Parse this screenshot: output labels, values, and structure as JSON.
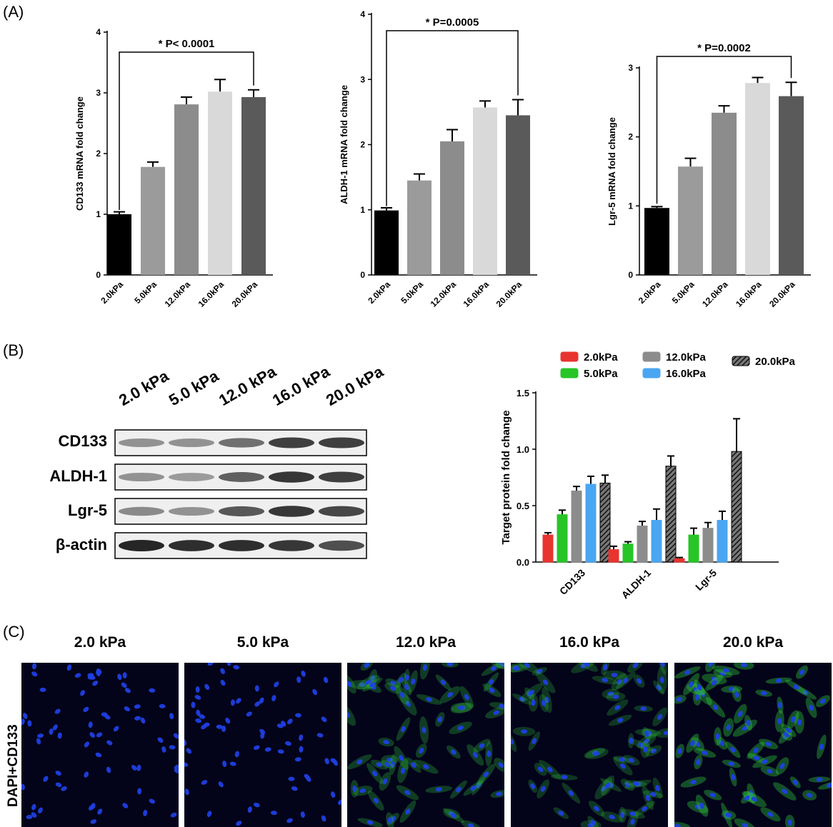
{
  "panels": {
    "a": "(A)",
    "b": "(B)",
    "c": "(C)"
  },
  "chart_data": [
    {
      "type": "bar",
      "ylabel": "CD133  mRNA fold change",
      "categories": [
        "2.0kPa",
        "5.0kPa",
        "12.0kPa",
        "16.0kPa",
        "20.0kPa"
      ],
      "values": [
        1.0,
        1.78,
        2.81,
        3.02,
        2.93
      ],
      "errors": [
        0.04,
        0.08,
        0.12,
        0.2,
        0.12
      ],
      "colors": [
        "#000000",
        "#9b9b9b",
        "#8c8c8c",
        "#d9d9d9",
        "#5a5a5a"
      ],
      "ylim": [
        0,
        4
      ],
      "yticks": [
        0,
        1,
        2,
        3,
        4
      ],
      "annotation": "*  P< 0.0001"
    },
    {
      "type": "bar",
      "ylabel": "ALDH-1  mRNA fold change",
      "categories": [
        "2.0kPa",
        "5.0kPa",
        "12.0kPa",
        "16.0kPa",
        "20.0kPa"
      ],
      "values": [
        0.99,
        1.45,
        2.05,
        2.57,
        2.45
      ],
      "errors": [
        0.04,
        0.1,
        0.18,
        0.1,
        0.24
      ],
      "colors": [
        "#000000",
        "#9b9b9b",
        "#8c8c8c",
        "#d9d9d9",
        "#5a5a5a"
      ],
      "ylim": [
        0,
        4
      ],
      "yticks": [
        0,
        1,
        2,
        3,
        4
      ],
      "annotation": "*  P=0.0005"
    },
    {
      "type": "bar",
      "ylabel": "Lgr-5  mRNA fold change",
      "categories": [
        "2.0kPa",
        "5.0kPa",
        "12.0kPa",
        "16.0kPa",
        "20.0kPa"
      ],
      "values": [
        0.97,
        1.57,
        2.35,
        2.78,
        2.59
      ],
      "errors": [
        0.02,
        0.12,
        0.1,
        0.08,
        0.2
      ],
      "colors": [
        "#000000",
        "#9b9b9b",
        "#8c8c8c",
        "#d9d9d9",
        "#5a5a5a"
      ],
      "ylim": [
        0,
        3
      ],
      "yticks": [
        0,
        1,
        2,
        3
      ],
      "annotation": "*  P=0.0002"
    },
    {
      "type": "bar",
      "ylabel": "Target protein fold change",
      "categories": [
        "CD133",
        "ALDH-1",
        "Lgr-5"
      ],
      "ylim": [
        0,
        1.5
      ],
      "yticks": [
        "0.0",
        "0.5",
        "1.0",
        "1.5"
      ],
      "series": [
        {
          "name": "2.0kPa",
          "values": [
            0.24,
            0.11,
            0.03
          ],
          "errors": [
            0.02,
            0.03,
            0.01
          ],
          "color": "#e8342f"
        },
        {
          "name": "5.0kPa",
          "values": [
            0.42,
            0.16,
            0.24
          ],
          "errors": [
            0.04,
            0.02,
            0.06
          ],
          "color": "#27c527"
        },
        {
          "name": "12.0kPa",
          "values": [
            0.63,
            0.32,
            0.3
          ],
          "errors": [
            0.04,
            0.04,
            0.05
          ],
          "color": "#8c8c8c"
        },
        {
          "name": "16.0kPa",
          "values": [
            0.69,
            0.37,
            0.37
          ],
          "errors": [
            0.07,
            0.1,
            0.08
          ],
          "color": "#4aa6f2"
        },
        {
          "name": "20.0kPa",
          "values": [
            0.7,
            0.85,
            0.98
          ],
          "errors": [
            0.07,
            0.09,
            0.29
          ],
          "color": "#333333",
          "pattern": "hatch"
        }
      ],
      "legend_placement": "top"
    }
  ],
  "blot": {
    "lanes": [
      "2.0 kPa",
      "5.0 kPa",
      "12.0 kPa",
      "16.0 kPa",
      "20.0 kPa"
    ],
    "rows": [
      "CD133",
      "ALDH-1",
      "Lgr-5",
      "β-actin"
    ]
  },
  "imaging": {
    "side_label": "DAPI+CD133",
    "titles": [
      "2.0 kPa",
      "5.0 kPa",
      "12.0 kPa",
      "16.0 kPa",
      "20.0 kPa"
    ],
    "green_level": [
      0.05,
      0.05,
      0.55,
      0.5,
      0.75
    ]
  }
}
